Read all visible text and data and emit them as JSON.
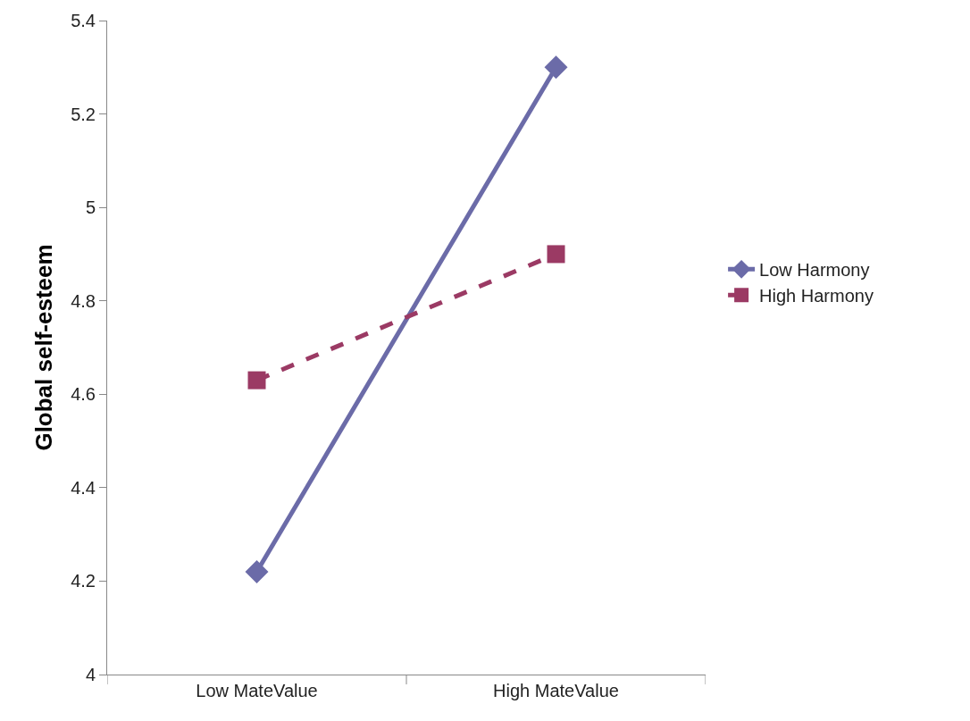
{
  "chart_data": {
    "type": "line",
    "ylabel": "Global self-esteem",
    "categories": [
      "Low MateValue",
      "High MateValue"
    ],
    "series": [
      {
        "name": "Low Harmony",
        "color": "#6b6ba8",
        "values": [
          4.22,
          5.3
        ],
        "marker": "diamond",
        "line_style": "solid"
      },
      {
        "name": "High Harmony",
        "color": "#9b3a64",
        "values": [
          4.63,
          4.9
        ],
        "marker": "square",
        "line_style": "dashed"
      }
    ],
    "ylim": [
      4,
      5.4
    ],
    "yticks": [
      4,
      4.2,
      4.4,
      4.6,
      4.8,
      5,
      5.2,
      5.4
    ],
    "grid": false,
    "legend": "right"
  }
}
